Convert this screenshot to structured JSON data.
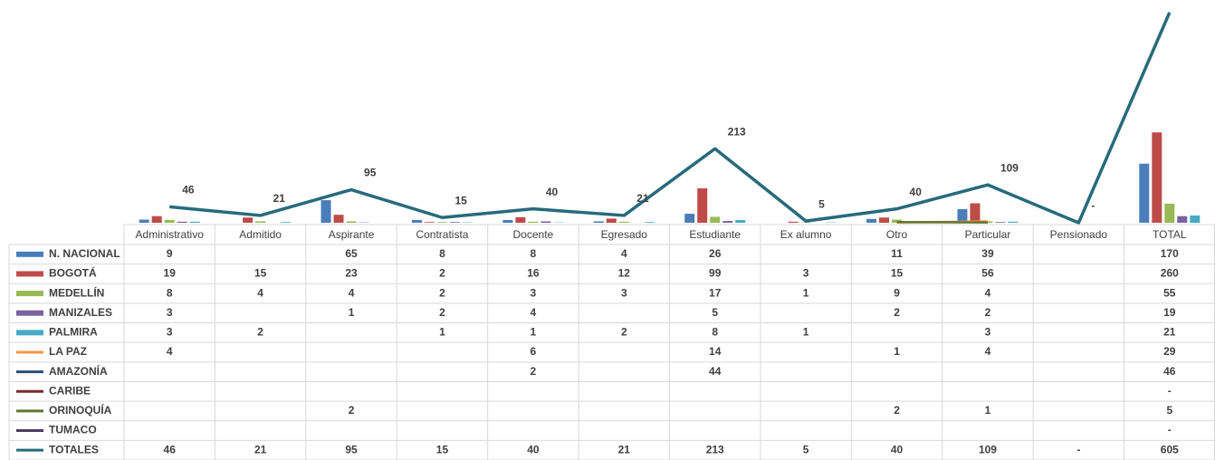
{
  "chart_data": {
    "type": "bar",
    "categories": [
      "Administrativo",
      "Admitido",
      "Aspirante",
      "Contratista",
      "Docente",
      "Egresado",
      "Estudiante",
      "Ex alumno",
      "Otro",
      "Particular",
      "Pensionado",
      "TOTAL"
    ],
    "ylim": [
      0,
      620
    ],
    "series": [
      {
        "name": "N. NACIONAL",
        "kind": "bar",
        "color": "#4a7ebb",
        "values": [
          9,
          null,
          65,
          8,
          8,
          4,
          26,
          null,
          11,
          39,
          null,
          170
        ]
      },
      {
        "name": "BOGOTÁ",
        "kind": "bar",
        "color": "#be4b48",
        "values": [
          19,
          15,
          23,
          2,
          16,
          12,
          99,
          3,
          15,
          56,
          null,
          260
        ]
      },
      {
        "name": "MEDELLÍN",
        "kind": "bar",
        "color": "#98b954",
        "values": [
          8,
          4,
          4,
          2,
          3,
          3,
          17,
          1,
          9,
          4,
          null,
          55
        ]
      },
      {
        "name": "MANIZALES",
        "kind": "bar",
        "color": "#7d60a0",
        "values": [
          3,
          null,
          1,
          2,
          4,
          null,
          5,
          null,
          2,
          2,
          null,
          19
        ]
      },
      {
        "name": "PALMIRA",
        "kind": "bar",
        "color": "#46aac5",
        "values": [
          3,
          2,
          null,
          1,
          1,
          2,
          8,
          1,
          null,
          3,
          null,
          21
        ]
      },
      {
        "name": "LA PAZ",
        "kind": "line",
        "color": "#f79646",
        "values": [
          4,
          null,
          null,
          null,
          6,
          null,
          14,
          null,
          1,
          4,
          null,
          29
        ]
      },
      {
        "name": "AMAZONÍA",
        "kind": "line",
        "color": "#2c4d75",
        "values": [
          null,
          null,
          null,
          null,
          2,
          null,
          44,
          null,
          null,
          null,
          null,
          46
        ]
      },
      {
        "name": "CARIBE",
        "kind": "line",
        "color": "#772c2a",
        "values": [
          null,
          null,
          null,
          null,
          null,
          null,
          null,
          null,
          null,
          null,
          null,
          0
        ],
        "value_labels": [
          null,
          null,
          null,
          null,
          null,
          null,
          null,
          null,
          null,
          null,
          null,
          "-"
        ]
      },
      {
        "name": "ORINOQUÍA",
        "kind": "line",
        "color": "#5f7530",
        "values": [
          null,
          null,
          2,
          null,
          null,
          null,
          null,
          null,
          2,
          1,
          null,
          5
        ]
      },
      {
        "name": "TUMACO",
        "kind": "line",
        "color": "#4d3b62",
        "values": [
          null,
          null,
          null,
          null,
          null,
          null,
          null,
          null,
          null,
          null,
          null,
          0
        ],
        "value_labels": [
          null,
          null,
          null,
          null,
          null,
          null,
          null,
          null,
          null,
          null,
          null,
          "-"
        ]
      },
      {
        "name": "TOTALES",
        "kind": "line",
        "color": "#276a7c",
        "labelled": true,
        "values": [
          46,
          21,
          95,
          15,
          40,
          21,
          213,
          5,
          40,
          109,
          0,
          605
        ],
        "value_labels": [
          "46",
          "21",
          "95",
          "15",
          "40",
          "21",
          "213",
          "5",
          "40",
          "109",
          "-",
          "605"
        ]
      }
    ]
  }
}
